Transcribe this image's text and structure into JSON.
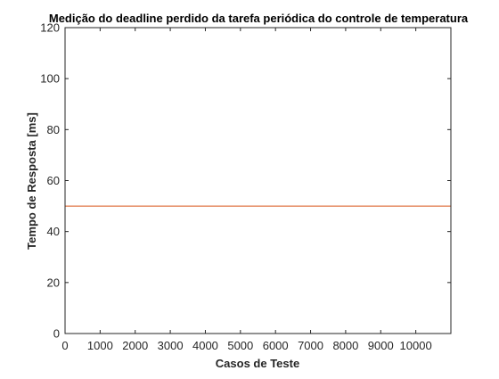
{
  "chart_data": {
    "type": "line",
    "title": "Medição do deadline perdido da tarefa periódica do controle de temperatura",
    "xlabel": "Casos de Teste",
    "ylabel": "Tempo de Resposta [ms]",
    "xlim": [
      0,
      11000
    ],
    "ylim": [
      0,
      120
    ],
    "xticks": [
      0,
      1000,
      2000,
      3000,
      4000,
      5000,
      6000,
      7000,
      8000,
      9000,
      10000
    ],
    "yticks": [
      0,
      20,
      40,
      60,
      80,
      100,
      120
    ],
    "grid": false,
    "series": [
      {
        "x": [
          0,
          11000
        ],
        "y": [
          50,
          50
        ],
        "color": "#D95319"
      }
    ]
  }
}
